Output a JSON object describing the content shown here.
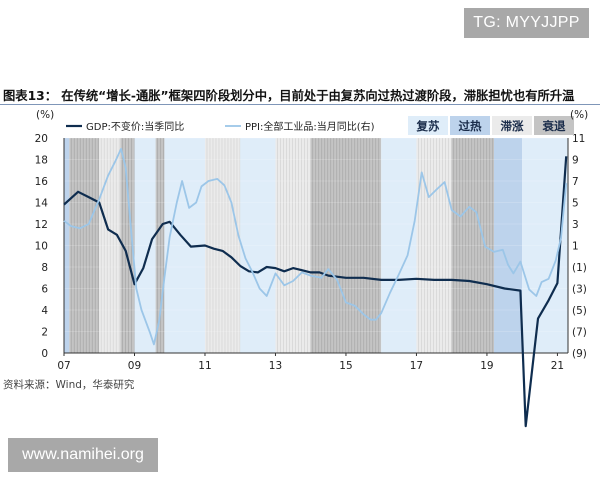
{
  "watermark_top": "TG: MYYJJPP",
  "watermark_bottom": "www.namihei.org",
  "figure_title": "图表13： 在传统“增长-通胀”框架四阶段划分中，目前处于由复苏向过热过渡阶段，滞胀担忧也有所升温",
  "source": "资料来源：Wind，华泰研究",
  "chart_data": {
    "type": "line",
    "left_unit": "(%)",
    "right_unit": "(%)",
    "ylim_left": [
      0,
      20
    ],
    "ylim_right": [
      -9,
      11
    ],
    "yticks_left": [
      "20",
      "18",
      "16",
      "14",
      "12",
      "10",
      "8",
      "6",
      "4",
      "2",
      "0"
    ],
    "yticks_right": [
      "11",
      "9",
      "7",
      "5",
      "3",
      "1",
      "(1)",
      "(3)",
      "(5)",
      "(7)",
      "(9)"
    ],
    "xlim": [
      2007.0,
      2021.3
    ],
    "xticks": [
      {
        "x": 2007,
        "label": "07"
      },
      {
        "x": 2009,
        "label": "09"
      },
      {
        "x": 2011,
        "label": "11"
      },
      {
        "x": 2013,
        "label": "13"
      },
      {
        "x": 2015,
        "label": "15"
      },
      {
        "x": 2017,
        "label": "17"
      },
      {
        "x": 2019,
        "label": "19"
      },
      {
        "x": 2021,
        "label": "21"
      }
    ],
    "phases": [
      {
        "name": "复苏",
        "color": "#dfedf9"
      },
      {
        "name": "过热",
        "color": "#bdd3ec"
      },
      {
        "name": "滞涨",
        "color": "#ebebeb"
      },
      {
        "name": "衰退",
        "color": "#c4c4c4"
      }
    ],
    "phase_periods": [
      {
        "start": 2007.0,
        "end": 2007.15,
        "phase": "过热"
      },
      {
        "start": 2007.15,
        "end": 2008.0,
        "phase": "衰退"
      },
      {
        "start": 2008.0,
        "end": 2008.6,
        "phase": "滞涨"
      },
      {
        "start": 2008.6,
        "end": 2009.0,
        "phase": "衰退"
      },
      {
        "start": 2009.0,
        "end": 2009.6,
        "phase": "复苏"
      },
      {
        "start": 2009.6,
        "end": 2009.85,
        "phase": "衰退"
      },
      {
        "start": 2009.85,
        "end": 2011.0,
        "phase": "复苏"
      },
      {
        "start": 2011.0,
        "end": 2012.0,
        "phase": "滞涨"
      },
      {
        "start": 2012.0,
        "end": 2013.0,
        "phase": "复苏"
      },
      {
        "start": 2013.0,
        "end": 2014.0,
        "phase": "滞涨"
      },
      {
        "start": 2014.0,
        "end": 2016.0,
        "phase": "衰退"
      },
      {
        "start": 2016.0,
        "end": 2017.0,
        "phase": "复苏"
      },
      {
        "start": 2017.0,
        "end": 2018.0,
        "phase": "滞涨"
      },
      {
        "start": 2018.0,
        "end": 2019.2,
        "phase": "衰退"
      },
      {
        "start": 2019.2,
        "end": 2020.0,
        "phase": "过热"
      },
      {
        "start": 2020.0,
        "end": 2021.3,
        "phase": "复苏"
      }
    ],
    "series": [
      {
        "name": "GDP:不变价:当季同比",
        "axis": "left",
        "color": "#0f2d4f",
        "points": [
          [
            2007.0,
            13.8
          ],
          [
            2007.4,
            15.0
          ],
          [
            2007.7,
            14.5
          ],
          [
            2008.0,
            14.0
          ],
          [
            2008.25,
            11.5
          ],
          [
            2008.5,
            11.0
          ],
          [
            2008.75,
            9.5
          ],
          [
            2009.0,
            6.4
          ],
          [
            2009.25,
            7.9
          ],
          [
            2009.5,
            10.6
          ],
          [
            2009.8,
            12.0
          ],
          [
            2010.0,
            12.2
          ],
          [
            2010.3,
            11.0
          ],
          [
            2010.6,
            9.9
          ],
          [
            2011.0,
            10.0
          ],
          [
            2011.25,
            9.7
          ],
          [
            2011.5,
            9.5
          ],
          [
            2011.75,
            8.9
          ],
          [
            2012.0,
            8.1
          ],
          [
            2012.25,
            7.6
          ],
          [
            2012.5,
            7.5
          ],
          [
            2012.75,
            8.0
          ],
          [
            2013.0,
            7.9
          ],
          [
            2013.25,
            7.6
          ],
          [
            2013.5,
            7.9
          ],
          [
            2013.75,
            7.7
          ],
          [
            2014.0,
            7.5
          ],
          [
            2014.25,
            7.5
          ],
          [
            2014.5,
            7.2
          ],
          [
            2014.75,
            7.1
          ],
          [
            2015.0,
            7.0
          ],
          [
            2015.5,
            7.0
          ],
          [
            2016.0,
            6.8
          ],
          [
            2016.5,
            6.8
          ],
          [
            2017.0,
            6.9
          ],
          [
            2017.5,
            6.8
          ],
          [
            2018.0,
            6.8
          ],
          [
            2018.5,
            6.7
          ],
          [
            2019.0,
            6.4
          ],
          [
            2019.5,
            6.0
          ],
          [
            2019.95,
            5.8
          ],
          [
            2020.1,
            -6.8
          ],
          [
            2020.45,
            3.2
          ],
          [
            2020.75,
            4.9
          ],
          [
            2021.0,
            6.5
          ],
          [
            2021.25,
            18.3
          ]
        ]
      },
      {
        "name": "PPI:全部工业品:当月同比(右)",
        "axis": "right",
        "color": "#9cc6e8",
        "points": [
          [
            2007.0,
            3.3
          ],
          [
            2007.2,
            2.8
          ],
          [
            2007.45,
            2.6
          ],
          [
            2007.7,
            3.0
          ],
          [
            2008.0,
            5.3
          ],
          [
            2008.25,
            7.5
          ],
          [
            2008.45,
            8.8
          ],
          [
            2008.62,
            10.0
          ],
          [
            2008.75,
            8.2
          ],
          [
            2008.9,
            2.5
          ],
          [
            2009.05,
            -3.0
          ],
          [
            2009.2,
            -5.0
          ],
          [
            2009.45,
            -7.2
          ],
          [
            2009.55,
            -8.2
          ],
          [
            2009.7,
            -6.0
          ],
          [
            2009.85,
            -2.0
          ],
          [
            2010.0,
            1.8
          ],
          [
            2010.2,
            5.0
          ],
          [
            2010.35,
            7.0
          ],
          [
            2010.55,
            4.5
          ],
          [
            2010.75,
            5.0
          ],
          [
            2010.9,
            6.5
          ],
          [
            2011.1,
            7.0
          ],
          [
            2011.35,
            7.2
          ],
          [
            2011.55,
            6.6
          ],
          [
            2011.75,
            5.0
          ],
          [
            2011.95,
            1.9
          ],
          [
            2012.15,
            -0.2
          ],
          [
            2012.35,
            -1.5
          ],
          [
            2012.55,
            -3.0
          ],
          [
            2012.75,
            -3.7
          ],
          [
            2013.0,
            -1.6
          ],
          [
            2013.25,
            -2.7
          ],
          [
            2013.5,
            -2.3
          ],
          [
            2013.75,
            -1.5
          ],
          [
            2014.0,
            -1.8
          ],
          [
            2014.3,
            -2.0
          ],
          [
            2014.5,
            -1.2
          ],
          [
            2014.75,
            -2.2
          ],
          [
            2015.0,
            -4.3
          ],
          [
            2015.25,
            -4.6
          ],
          [
            2015.5,
            -5.4
          ],
          [
            2015.7,
            -5.9
          ],
          [
            2015.85,
            -5.9
          ],
          [
            2016.0,
            -5.3
          ],
          [
            2016.25,
            -3.4
          ],
          [
            2016.5,
            -1.7
          ],
          [
            2016.75,
            0.1
          ],
          [
            2016.95,
            3.3
          ],
          [
            2017.15,
            7.8
          ],
          [
            2017.35,
            5.5
          ],
          [
            2017.6,
            6.3
          ],
          [
            2017.8,
            6.9
          ],
          [
            2018.0,
            4.3
          ],
          [
            2018.25,
            3.7
          ],
          [
            2018.5,
            4.6
          ],
          [
            2018.7,
            4.1
          ],
          [
            2018.95,
            0.9
          ],
          [
            2019.2,
            0.4
          ],
          [
            2019.45,
            0.6
          ],
          [
            2019.6,
            -0.8
          ],
          [
            2019.75,
            -1.6
          ],
          [
            2019.95,
            -0.5
          ],
          [
            2020.2,
            -3.1
          ],
          [
            2020.4,
            -3.7
          ],
          [
            2020.55,
            -2.4
          ],
          [
            2020.75,
            -2.1
          ],
          [
            2020.95,
            -0.4
          ],
          [
            2021.1,
            1.7
          ],
          [
            2021.25,
            6.8
          ]
        ]
      }
    ]
  }
}
